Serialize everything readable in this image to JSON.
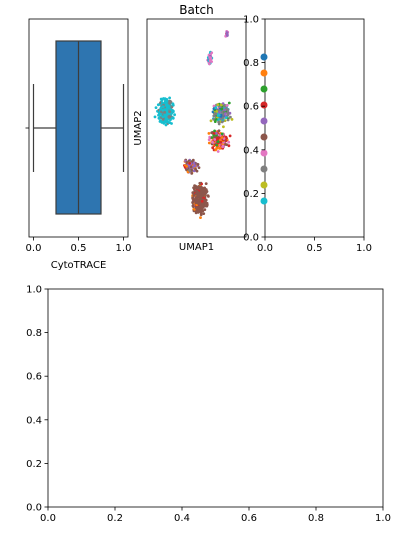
{
  "chart_data": [
    {
      "type": "box",
      "xlabel": "CytoTRACE",
      "x_ticks": [
        "0.0",
        "0.5",
        "1.0"
      ],
      "xlim": [
        -0.05,
        1.05
      ],
      "box": {
        "min": 0.0,
        "q1": 0.25,
        "median": 0.5,
        "q3": 0.75,
        "max": 1.0
      },
      "color": "#2e75b0"
    },
    {
      "type": "scatter",
      "title": "Batch",
      "xlabel": "UMAP1",
      "ylabel": "UMAP2",
      "palette": [
        "#1f77b4",
        "#ff7f0e",
        "#2ca02c",
        "#d62728",
        "#9467bd",
        "#8c564b",
        "#e377c2",
        "#7f7f7f",
        "#bcbd22",
        "#17becf"
      ]
    },
    {
      "type": "legend",
      "x_ticks": [
        "0.0",
        "0.5",
        "1.0"
      ],
      "y_ticks": [
        "0.0",
        "0.2",
        "0.4",
        "0.6",
        "0.8",
        "1.0"
      ],
      "xlim": [
        0,
        1
      ],
      "ylim": [
        0,
        1
      ],
      "legend_colors": [
        "#1f77b4",
        "#ff7f0e",
        "#2ca02c",
        "#d62728",
        "#9467bd",
        "#8c564b",
        "#e377c2",
        "#7f7f7f",
        "#bcbd22",
        "#17becf"
      ]
    },
    {
      "type": "empty",
      "x_ticks": [
        "0.0",
        "0.2",
        "0.4",
        "0.6",
        "0.8",
        "1.0"
      ],
      "y_ticks": [
        "0.0",
        "0.2",
        "0.4",
        "0.6",
        "0.8",
        "1.0"
      ],
      "xlim": [
        0,
        1
      ],
      "ylim": [
        0,
        1
      ]
    }
  ]
}
